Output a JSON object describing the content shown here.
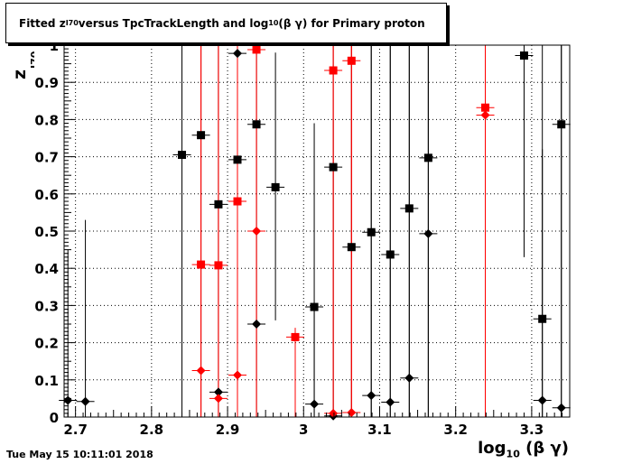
{
  "title": {
    "prefix": "Fitted  z",
    "sub": "I70",
    "mid": "  versus TpcTrackLength and log",
    "sub2": "10",
    "suffix": " (β γ) for Primary proton"
  },
  "date_stamp": "Tue May 15 10:11:01 2018",
  "chart_data": {
    "type": "scatter",
    "title": "Fitted z_I70 versus TpcTrackLength and log10 (β γ) for Primary proton",
    "xlabel": "log10 (β γ)",
    "ylabel": "z I70",
    "xlim": [
      2.685,
      3.35
    ],
    "ylim": [
      0,
      1.0
    ],
    "x_ticks": [
      2.7,
      2.8,
      2.9,
      3.0,
      3.1,
      3.2,
      3.3
    ],
    "x_tick_labels": [
      "2.7",
      "2.8",
      "2.9",
      "3",
      "3.1",
      "3.2",
      "3.3"
    ],
    "y_ticks": [
      0,
      0.1,
      0.2,
      0.3,
      0.4,
      0.5,
      0.6,
      0.7,
      0.8,
      0.9,
      1.0
    ],
    "y_tick_labels": [
      "0",
      "0.1",
      "0.2",
      "0.3",
      "0.4",
      "0.5",
      "0.6",
      "0.7",
      "0.8",
      "0.9",
      "1"
    ],
    "grid": true,
    "series": [
      {
        "marker": "square",
        "color": "#000000",
        "points": [
          {
            "x": 2.84,
            "y": 0.705,
            "ylo": 0.0,
            "yhi": 1.0
          },
          {
            "x": 2.865,
            "y": 0.758,
            "ylo": 0.0,
            "yhi": 1.0
          },
          {
            "x": 2.888,
            "y": 0.572,
            "ylo": 0.0,
            "yhi": 1.0
          },
          {
            "x": 2.913,
            "y": 0.692,
            "ylo": 0.0,
            "yhi": 1.0
          },
          {
            "x": 2.938,
            "y": 0.787,
            "ylo": 0.0,
            "yhi": 1.0
          },
          {
            "x": 2.963,
            "y": 0.618,
            "ylo": 0.26,
            "yhi": 0.98
          },
          {
            "x": 3.014,
            "y": 0.296,
            "ylo": 0.0,
            "yhi": 0.79
          },
          {
            "x": 3.039,
            "y": 0.672,
            "ylo": 0.0,
            "yhi": 1.0
          },
          {
            "x": 3.063,
            "y": 0.457,
            "ylo": 0.0,
            "yhi": 1.0
          },
          {
            "x": 3.089,
            "y": 0.497,
            "ylo": 0.0,
            "yhi": 1.0
          },
          {
            "x": 3.114,
            "y": 0.437,
            "ylo": 0.0,
            "yhi": 1.0
          },
          {
            "x": 3.139,
            "y": 0.561,
            "ylo": 0.0,
            "yhi": 1.0
          },
          {
            "x": 3.164,
            "y": 0.697,
            "ylo": 0.0,
            "yhi": 1.0
          },
          {
            "x": 3.29,
            "y": 0.972,
            "ylo": 0.43,
            "yhi": 1.0
          },
          {
            "x": 3.314,
            "y": 0.264,
            "ylo": 0.0,
            "yhi": 1.0
          },
          {
            "x": 3.339,
            "y": 0.787,
            "ylo": 0.0,
            "yhi": 1.0
          }
        ]
      },
      {
        "marker": "diamond",
        "color": "#000000",
        "points": [
          {
            "x": 2.69,
            "y": 0.045,
            "ylo": 0.0,
            "yhi": 0.45
          },
          {
            "x": 2.713,
            "y": 0.042,
            "ylo": 0.0,
            "yhi": 0.53
          },
          {
            "x": 2.888,
            "y": 0.067,
            "ylo": 0.0,
            "yhi": 1.0
          },
          {
            "x": 2.913,
            "y": 0.978,
            "ylo": 0.0,
            "yhi": 1.0
          },
          {
            "x": 2.938,
            "y": 0.25,
            "ylo": 0.0,
            "yhi": 1.0
          },
          {
            "x": 3.014,
            "y": 0.035,
            "ylo": 0.0,
            "yhi": 0.3
          },
          {
            "x": 3.039,
            "y": 0.003,
            "ylo": 0.0,
            "yhi": 0.8
          },
          {
            "x": 3.089,
            "y": 0.058,
            "ylo": 0.0,
            "yhi": 1.0
          },
          {
            "x": 3.114,
            "y": 0.04,
            "ylo": 0.0,
            "yhi": 1.0
          },
          {
            "x": 3.139,
            "y": 0.105,
            "ylo": 0.0,
            "yhi": 1.0
          },
          {
            "x": 3.164,
            "y": 0.493,
            "ylo": 0.0,
            "yhi": 1.0
          },
          {
            "x": 3.314,
            "y": 0.045,
            "ylo": 0.0,
            "yhi": 0.72
          },
          {
            "x": 3.339,
            "y": 0.025,
            "ylo": 0.0,
            "yhi": 1.0
          }
        ]
      },
      {
        "marker": "square",
        "color": "#ff0000",
        "points": [
          {
            "x": 2.865,
            "y": 0.41,
            "ylo": 0.0,
            "yhi": 1.0
          },
          {
            "x": 2.888,
            "y": 0.408,
            "ylo": 0.0,
            "yhi": 1.0
          },
          {
            "x": 2.913,
            "y": 0.58,
            "ylo": 0.0,
            "yhi": 1.0
          },
          {
            "x": 2.938,
            "y": 0.988,
            "ylo": 0.0,
            "yhi": 1.0
          },
          {
            "x": 2.989,
            "y": 0.215,
            "ylo": 0.0,
            "yhi": 0.24
          },
          {
            "x": 3.039,
            "y": 0.932,
            "ylo": 0.0,
            "yhi": 1.0
          },
          {
            "x": 3.063,
            "y": 0.958,
            "ylo": 0.0,
            "yhi": 1.0
          },
          {
            "x": 3.239,
            "y": 0.832,
            "ylo": 0.0,
            "yhi": 1.0
          }
        ]
      },
      {
        "marker": "diamond",
        "color": "#ff0000",
        "points": [
          {
            "x": 2.865,
            "y": 0.125,
            "ylo": 0.0,
            "yhi": 1.0
          },
          {
            "x": 2.888,
            "y": 0.05,
            "ylo": 0.0,
            "yhi": 1.0
          },
          {
            "x": 2.913,
            "y": 0.113,
            "ylo": 0.0,
            "yhi": 1.0
          },
          {
            "x": 2.938,
            "y": 0.5,
            "ylo": 0.0,
            "yhi": 1.0
          },
          {
            "x": 3.039,
            "y": 0.01,
            "ylo": 0.0,
            "yhi": 1.0
          },
          {
            "x": 3.063,
            "y": 0.012,
            "ylo": 0.0,
            "yhi": 1.0
          },
          {
            "x": 3.239,
            "y": 0.812,
            "ylo": 0.0,
            "yhi": 1.0
          }
        ]
      }
    ]
  }
}
